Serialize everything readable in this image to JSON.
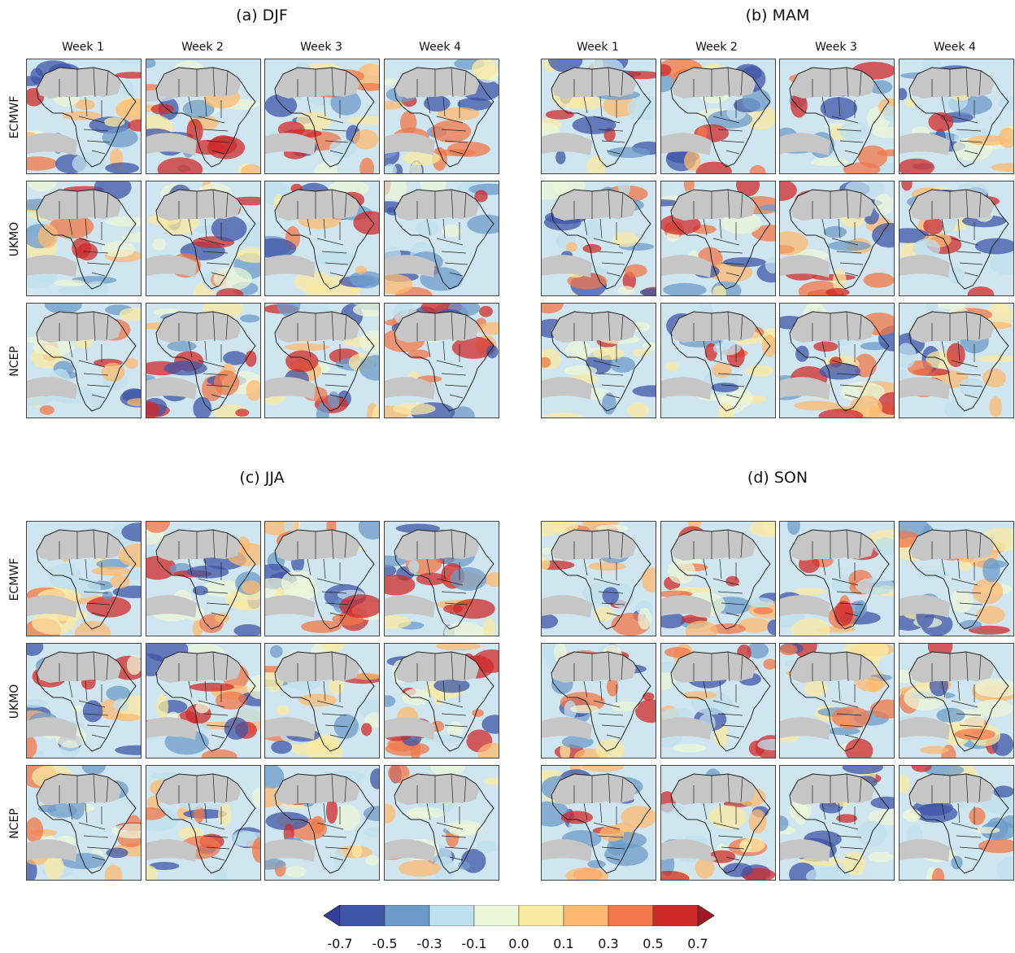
{
  "panels": [
    {
      "id": "djf",
      "title": "(a) DJF"
    },
    {
      "id": "mam",
      "title": "(b) MAM"
    },
    {
      "id": "jja",
      "title": "(c) JJA"
    },
    {
      "id": "son",
      "title": "(d) SON"
    }
  ],
  "weeks": [
    "Week 1",
    "Week 2",
    "Week 3",
    "Week 4"
  ],
  "models": [
    "ECMWF",
    "UKMO",
    "NCEP"
  ],
  "colorbar": {
    "ticks": [
      "-0.7",
      "-0.5",
      "-0.3",
      "-0.1",
      "0.0",
      "0.1",
      "0.3",
      "0.5",
      "0.7"
    ],
    "colors": [
      "#3f55a8",
      "#6d9bc9",
      "#bfe0ee",
      "#ecf6d8",
      "#fbeaa2",
      "#fdb970",
      "#f2774a",
      "#cf2a2a"
    ],
    "low_extend_color": "#2f3f9a",
    "high_extend_color": "#a51626"
  },
  "map_colors": {
    "ocean": "#cfe6f0",
    "land_mask": "#c6c6c6",
    "outline": "#222222"
  },
  "chart_data": {
    "type": "heatmap",
    "layout": "4 seasonal panels x 3 models x 4 lead weeks",
    "seasons": [
      "DJF",
      "MAM",
      "JJA",
      "SON"
    ],
    "models": [
      "ECMWF",
      "UKMO",
      "NCEP"
    ],
    "lead_weeks": [
      "Week 1",
      "Week 2",
      "Week 3",
      "Week 4"
    ],
    "colorbar_levels": [
      -0.7,
      -0.5,
      -0.3,
      -0.1,
      0.0,
      0.1,
      0.3,
      0.5,
      0.7
    ]
  }
}
